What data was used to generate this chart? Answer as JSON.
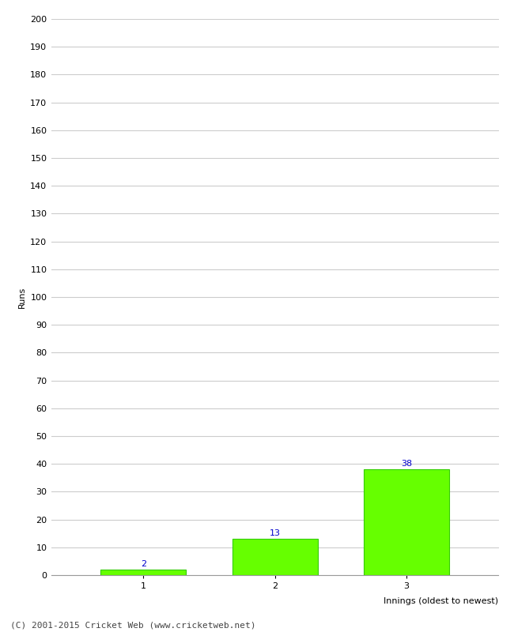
{
  "categories": [
    "1",
    "2",
    "3"
  ],
  "values": [
    2,
    13,
    38
  ],
  "bar_color": "#66ff00",
  "bar_edge_color": "#33cc00",
  "value_label_color": "#0000cc",
  "ylabel": "Runs",
  "xlabel": "Innings (oldest to newest)",
  "ylim": [
    0,
    200
  ],
  "yticks": [
    0,
    10,
    20,
    30,
    40,
    50,
    60,
    70,
    80,
    90,
    100,
    110,
    120,
    130,
    140,
    150,
    160,
    170,
    180,
    190,
    200
  ],
  "background_color": "#ffffff",
  "grid_color": "#cccccc",
  "footer_text": "(C) 2001-2015 Cricket Web (www.cricketweb.net)",
  "value_label_fontsize": 8,
  "axis_label_fontsize": 8,
  "tick_label_fontsize": 8,
  "footer_fontsize": 8
}
